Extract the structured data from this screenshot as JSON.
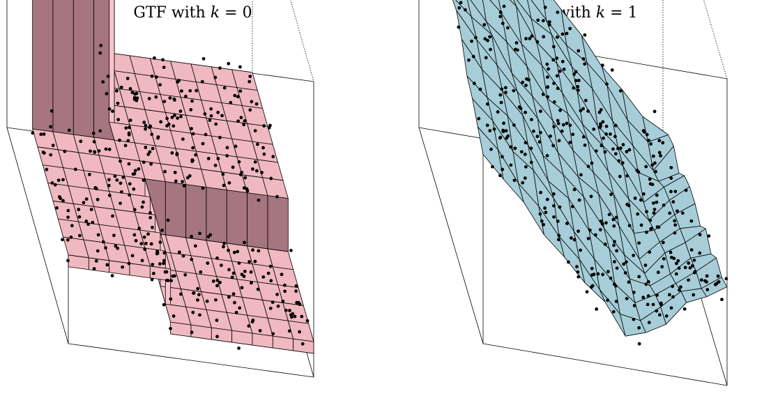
{
  "figure": {
    "panels": [
      {
        "title_text": "GTF with ",
        "title_var": "k",
        "title_rest": " = 0"
      },
      {
        "title_text": "GTF with ",
        "title_var": "k",
        "title_rest": " = 1"
      }
    ]
  },
  "chart_data": [
    {
      "type": "surface3d",
      "title": "GTF with k = 0",
      "description_of_marks": "piecewise-constant 3D surface over a 12x12 grid with scattered observations",
      "surface_color": "#f0b8c0",
      "wall_color": "#a57580",
      "point_color": "#000000",
      "grid_n": 12,
      "z_levels": {
        "base_plateau": 0.45,
        "tall_column": 1.0,
        "lower_step": 0.2
      },
      "regions": [
        {
          "name": "tall_column",
          "x_range": [
            0.0,
            0.33
          ],
          "y_range": [
            0.58,
            1.0
          ],
          "z": 1.0
        },
        {
          "name": "upper_plateau",
          "x_range": [
            0.0,
            1.0
          ],
          "y_range": [
            0.0,
            1.0
          ],
          "z": 0.45
        },
        {
          "name": "lower_step",
          "x_range": [
            0.5,
            1.0
          ],
          "y_range": [
            0.0,
            0.42
          ],
          "z": 0.2
        }
      ],
      "points_count": 420
    },
    {
      "type": "surface3d",
      "title": "GTF with k = 1",
      "description_of_marks": "piecewise-linear 3D surface over a 12x12 grid with scattered observations",
      "surface_color": "#a6cdd8",
      "point_color": "#000000",
      "grid_n": 12,
      "points_count": 420
    }
  ]
}
